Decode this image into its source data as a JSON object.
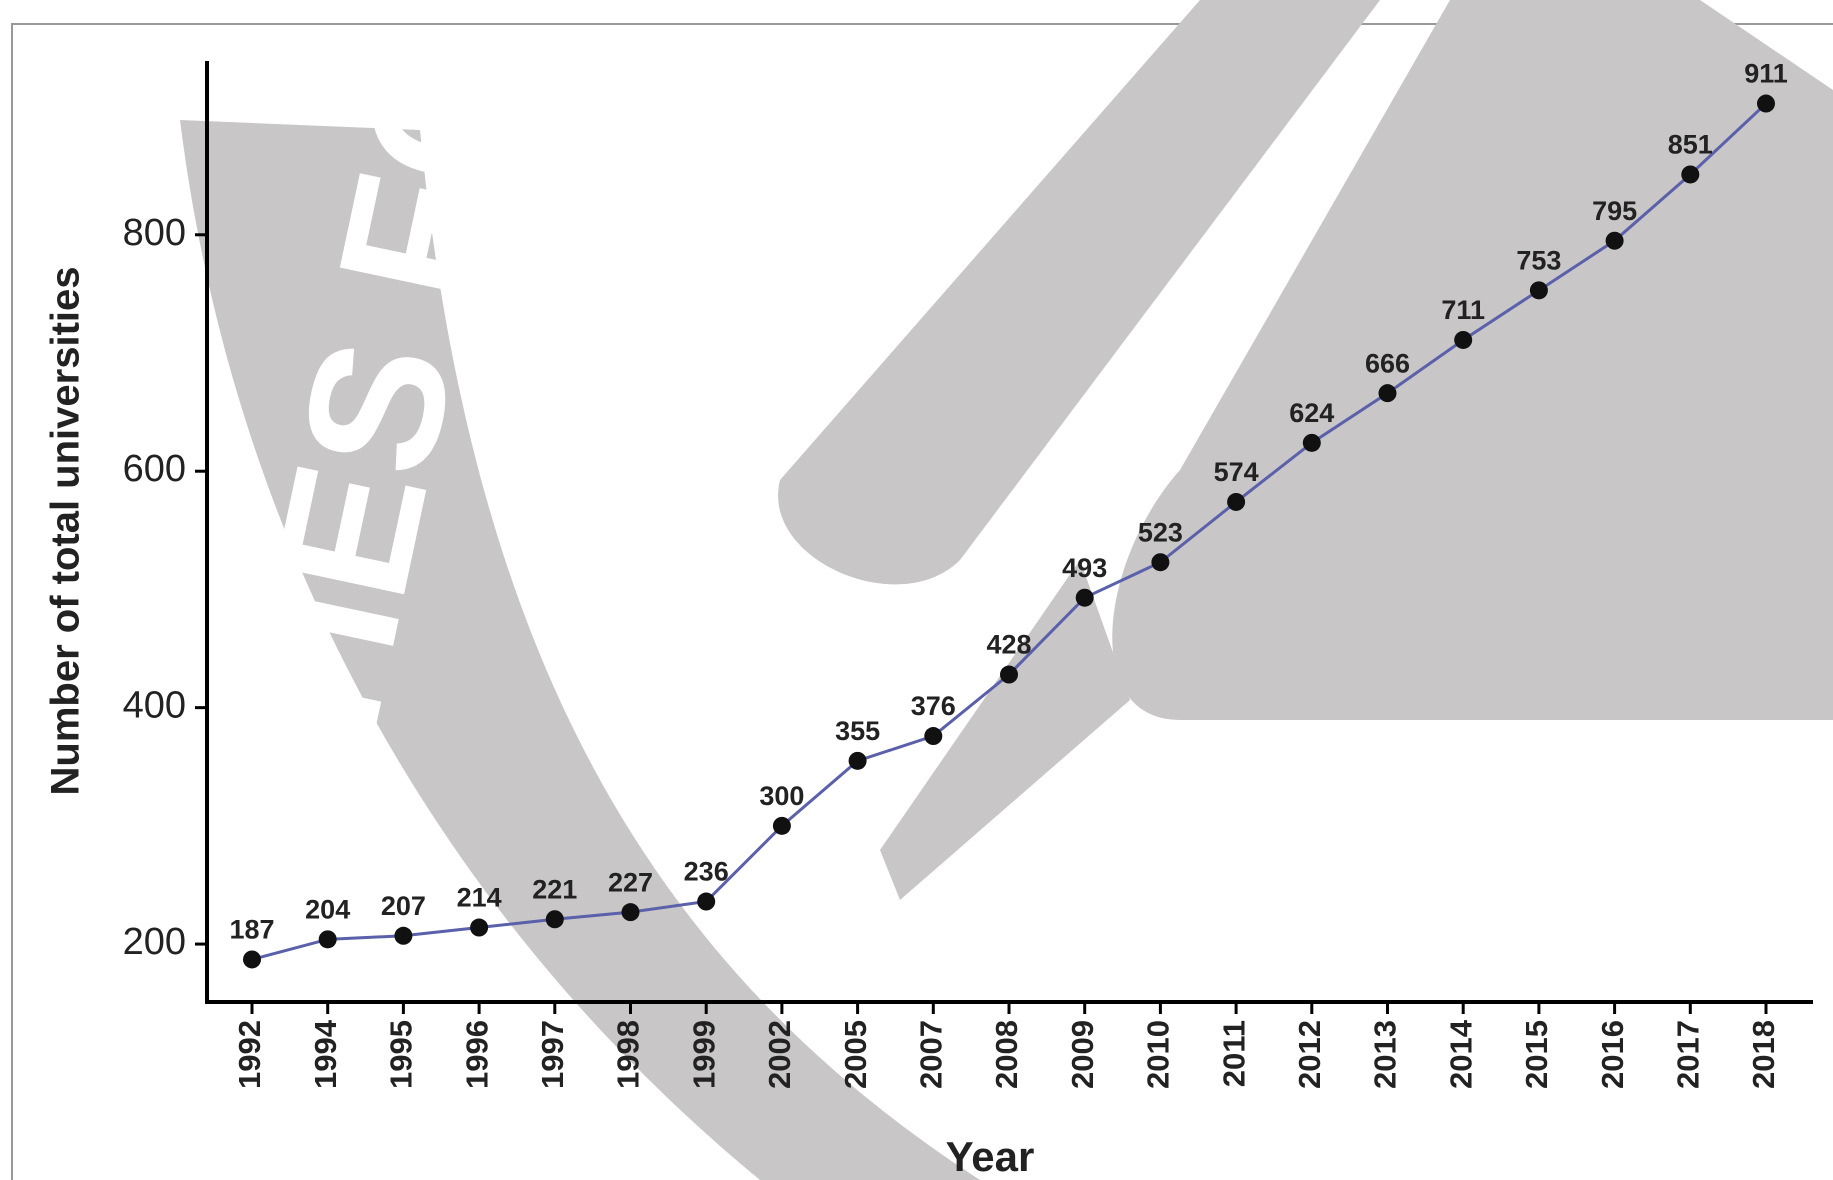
{
  "chart_data": {
    "type": "line",
    "watermark": "UNITIES FO",
    "x_label": "Year",
    "y_label": "Number of total universities",
    "categories": [
      "1992",
      "1994",
      "1995",
      "1996",
      "1997",
      "1998",
      "1999",
      "2002",
      "2005",
      "2007",
      "2008",
      "2009",
      "2010",
      "2011",
      "2012",
      "2013",
      "2014",
      "2015",
      "2016",
      "2017",
      "2018"
    ],
    "values": [
      187,
      204,
      207,
      214,
      221,
      227,
      236,
      300,
      355,
      376,
      428,
      493,
      523,
      574,
      624,
      666,
      711,
      753,
      795,
      851,
      911
    ],
    "color": "#5a60aa",
    "marker_color": "#111111",
    "ylim": [
      151,
      947
    ],
    "yticks": [
      200,
      400,
      600,
      800
    ],
    "grid": false
  }
}
